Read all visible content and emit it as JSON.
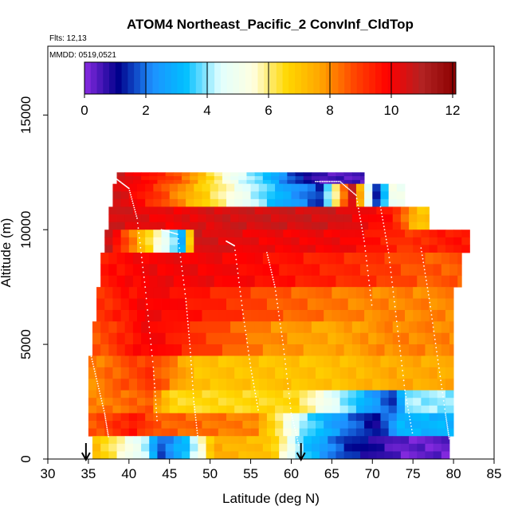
{
  "chart_data": {
    "type": "heatmap",
    "title": "ATOM4 Northeast_Pacific_2 ConvInf_CldTop",
    "notes": [
      "Flts: 12,13",
      "MMDD: 0519,0521"
    ],
    "xlabel": "Latitude (deg N)",
    "ylabel": "Altitude (m)",
    "xlim": [
      30,
      85
    ],
    "ylim": [
      0,
      18000
    ],
    "xticks": [
      30,
      35,
      40,
      45,
      50,
      55,
      60,
      65,
      70,
      75,
      80,
      85
    ],
    "yticks": [
      0,
      5000,
      10000,
      15000
    ],
    "colorbar": {
      "range": [
        0,
        12
      ],
      "ticks": [
        0,
        2,
        4,
        6,
        8,
        10,
        12
      ],
      "colors": [
        "#8a2be2",
        "#00008b",
        "#1e90ff",
        "#00bfff",
        "#e0ffff",
        "#ffffe0",
        "#ffd700",
        "#ffa500",
        "#ff4500",
        "#ff0000",
        "#b22222",
        "#8b0000"
      ]
    },
    "arrow_latitudes": [
      34.7,
      61.2
    ],
    "value_bands": [
      {
        "alt": [
          12000,
          12500
        ],
        "lat_range": [
          38.5,
          69
        ],
        "segments": [
          [
            38.5,
            10.5
          ],
          [
            46,
            8.5
          ],
          [
            52,
            5
          ],
          [
            56,
            3.5
          ],
          [
            60,
            1.5
          ],
          [
            63,
            0.5
          ]
        ]
      },
      {
        "alt": [
          11000,
          12000
        ],
        "lat_range": [
          38,
          74
        ],
        "segments": [
          [
            38,
            10.5
          ],
          [
            43,
            9
          ],
          [
            48,
            7
          ],
          [
            53,
            5
          ],
          [
            58,
            3
          ],
          [
            63,
            1.5
          ],
          [
            67,
            10.5
          ],
          [
            70,
            1.5
          ],
          [
            72,
            5
          ]
        ]
      },
      {
        "alt": [
          10000,
          11000
        ],
        "lat_range": [
          37.5,
          77
        ],
        "segments": [
          [
            37.5,
            10.5
          ],
          [
            44,
            10
          ],
          [
            52,
            10.5
          ],
          [
            65,
            10.5
          ],
          [
            72,
            9.5
          ],
          [
            75,
            7
          ]
        ]
      },
      {
        "alt": [
          9000,
          10000
        ],
        "lat_range": [
          37,
          82
        ],
        "segments": [
          [
            37,
            10.5
          ],
          [
            46,
            3
          ],
          [
            48,
            10.5
          ],
          [
            56,
            10
          ],
          [
            66,
            10
          ],
          [
            74,
            9
          ],
          [
            79,
            9.5
          ]
        ]
      },
      {
        "alt": [
          7500,
          9000
        ],
        "lat_range": [
          36.5,
          81
        ],
        "segments": [
          [
            36.5,
            9.5
          ],
          [
            42,
            10
          ],
          [
            50,
            10
          ],
          [
            60,
            9.5
          ],
          [
            70,
            9
          ],
          [
            76,
            8.5
          ]
        ]
      },
      {
        "alt": [
          6000,
          7500
        ],
        "lat_range": [
          36,
          80
        ],
        "segments": [
          [
            36,
            9
          ],
          [
            42,
            10
          ],
          [
            48,
            9.5
          ],
          [
            58,
            8.5
          ],
          [
            68,
            8
          ],
          [
            74,
            8
          ]
        ]
      },
      {
        "alt": [
          4500,
          6000
        ],
        "lat_range": [
          35.5,
          80
        ],
        "segments": [
          [
            35.5,
            8.5
          ],
          [
            42,
            10
          ],
          [
            48,
            9
          ],
          [
            56,
            8
          ],
          [
            64,
            7.5
          ],
          [
            72,
            8
          ]
        ]
      },
      {
        "alt": [
          3000,
          4500
        ],
        "lat_range": [
          35,
          80
        ],
        "segments": [
          [
            35,
            8
          ],
          [
            42,
            9
          ],
          [
            48,
            7
          ],
          [
            56,
            7
          ],
          [
            64,
            7
          ],
          [
            72,
            7.5
          ]
        ]
      },
      {
        "alt": [
          2000,
          3000
        ],
        "lat_range": [
          35,
          80
        ],
        "segments": [
          [
            35,
            8
          ],
          [
            42,
            8.5
          ],
          [
            45,
            6.5
          ],
          [
            60,
            6.5
          ],
          [
            72,
            1.5
          ],
          [
            74,
            4
          ]
        ]
      },
      {
        "alt": [
          1000,
          2000
        ],
        "lat_range": [
          35,
          80
        ],
        "segments": [
          [
            35,
            8.5
          ],
          [
            40,
            9.5
          ],
          [
            43,
            8.5
          ],
          [
            55,
            8
          ],
          [
            61,
            4
          ],
          [
            65,
            2.5
          ],
          [
            70,
            1
          ],
          [
            73,
            3
          ]
        ]
      },
      {
        "alt": [
          0,
          1000
        ],
        "lat_range": [
          35.5,
          79.5
        ],
        "segments": [
          [
            35.5,
            7
          ],
          [
            42,
            4
          ],
          [
            43,
            1.5
          ],
          [
            47,
            3.5
          ],
          [
            50,
            7.5
          ],
          [
            57,
            7
          ],
          [
            61,
            3.5
          ],
          [
            66,
            1.5
          ],
          [
            73,
            0.3
          ]
        ]
      }
    ],
    "grid": false
  }
}
